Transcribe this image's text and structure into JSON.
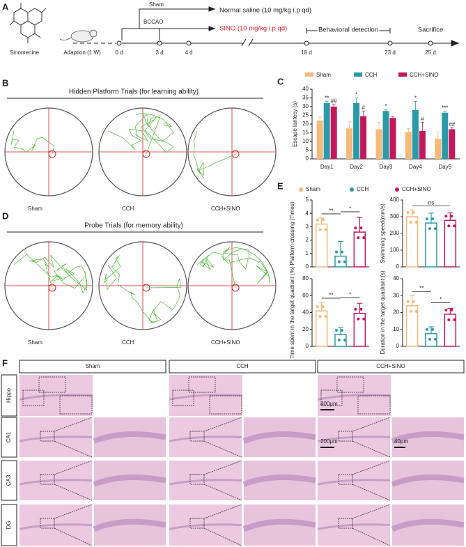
{
  "panel_labels": [
    "A",
    "B",
    "C",
    "D",
    "E",
    "F"
  ],
  "timeline": {
    "compound": "Sinomenine",
    "adaption": "Adaption (1 W)",
    "days": [
      "0 d",
      "3 d",
      "4 d",
      "18 d",
      "23 d",
      "25 d"
    ],
    "sham": "Sham",
    "bccao": "BCCAO",
    "saline": "Normal saline (10 mg/kg i.p qd)",
    "sino": "SINO (10 mg/kg i.p qd)",
    "behavior": "Behavioral detection",
    "sacrifice": "Sacrifice"
  },
  "hidden": {
    "title": "Hidden Platform Trials (for learning ability)",
    "groups": [
      "Sham",
      "CCH",
      "CCH+SINO"
    ]
  },
  "probe": {
    "title": "Probe Trials (for memory ability)",
    "groups": [
      "Sham",
      "CCH",
      "CCH+SINO"
    ]
  },
  "histology": {
    "groups": [
      "Sham",
      "CCH",
      "CCH+SINO"
    ],
    "rows": [
      "Hippo",
      "CA1",
      "CA3",
      "DG"
    ],
    "scales": [
      "400μm",
      "200μm",
      "40μm"
    ]
  },
  "chart_data": [
    {
      "type": "bar",
      "ylabel": "Escape lantecy (s)",
      "categories": [
        "Day1",
        "Day2",
        "Day3",
        "Day4",
        "Day5"
      ],
      "ylim": [
        0,
        40
      ],
      "yticks": [
        0,
        5,
        10,
        15,
        20,
        25,
        30,
        35,
        40
      ],
      "series": [
        {
          "name": "Sham",
          "color": "#f5b97a",
          "values": [
            22,
            17.5,
            17,
            15.5,
            11.5
          ],
          "errors": [
            2,
            4,
            4,
            2,
            4
          ],
          "significance": [
            null,
            null,
            null,
            null,
            null
          ]
        },
        {
          "name": "CCH",
          "color": "#2a9aa8",
          "values": [
            32,
            32,
            27.5,
            28,
            26.5
          ],
          "errors": [
            1,
            3,
            1,
            5,
            1
          ],
          "significance": [
            "**",
            "*",
            "*",
            "*",
            "***"
          ]
        },
        {
          "name": "CCH+SINO",
          "color": "#c2185b",
          "values": [
            30,
            24.5,
            23.5,
            16,
            17
          ],
          "errors": [
            1.5,
            3,
            1,
            5,
            1
          ],
          "significance": [
            "##",
            "#",
            null,
            "#",
            "##"
          ]
        }
      ]
    },
    {
      "type": "bar-panels",
      "groups": [
        {
          "name": "Sham",
          "color": "#f5b97a"
        },
        {
          "name": "CCH",
          "color": "#2a9aa8"
        },
        {
          "name": "CCH+SINO",
          "color": "#c2185b"
        }
      ],
      "panels": [
        {
          "ylabel": "Platform crossing (Times)",
          "ylim": [
            0,
            5
          ],
          "yticks": [
            0,
            1,
            2,
            3,
            4,
            5
          ],
          "values": [
            3.2,
            0.8,
            2.6
          ],
          "errors": [
            0.45,
            1.1,
            1.1
          ],
          "brackets": [
            "**",
            "*"
          ]
        },
        {
          "ylabel": "Swimming speed(mm/s)",
          "ylim": [
            0,
            400
          ],
          "yticks": [
            0,
            100,
            200,
            300,
            400
          ],
          "values": [
            300,
            262,
            278
          ],
          "errors": [
            40,
            60,
            45
          ],
          "brackets": [
            "ns"
          ]
        },
        {
          "ylabel": "Time spent in the target quadrant (%)",
          "ylim": [
            0,
            80
          ],
          "yticks": [
            0,
            20,
            40,
            60,
            80
          ],
          "values": [
            42,
            14,
            39
          ],
          "errors": [
            10,
            8,
            12
          ],
          "brackets": [
            "**",
            "*"
          ]
        },
        {
          "ylabel": "Duration in the target quadrant (s)",
          "ylim": [
            0,
            40
          ],
          "yticks": [
            0,
            10,
            20,
            30,
            40
          ],
          "values": [
            24,
            7.5,
            19
          ],
          "errors": [
            6,
            4,
            3.5
          ],
          "brackets": [
            "**",
            "*"
          ]
        }
      ]
    }
  ]
}
